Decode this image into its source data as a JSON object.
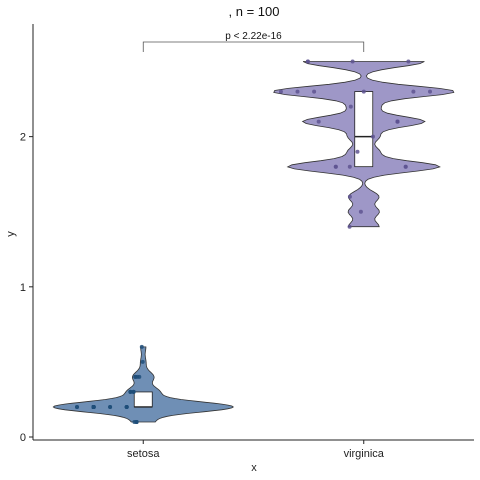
{
  "chart_data": {
    "type": "violin",
    "title": ", n = 100",
    "xlabel": "x",
    "ylabel": "y",
    "categories": [
      "setosa",
      "virginica"
    ],
    "yticks": [
      0,
      1,
      2
    ],
    "ylim": [
      -0.02,
      2.75
    ],
    "groups": [
      {
        "name": "setosa",
        "fill": "#6f8fb5",
        "point_color": "#1f4e79",
        "box": {
          "q1": 0.2,
          "median": 0.2,
          "q3": 0.3
        },
        "violin_range": [
          0.1,
          0.6
        ],
        "points": [
          [
            0.2,
            0.2
          ],
          [
            0.2,
            0.2
          ],
          [
            0.2,
            0.2
          ],
          [
            0.2,
            0.2
          ],
          [
            0.2,
            0.4
          ],
          [
            0.4,
            0.3
          ],
          [
            0.3,
            0.2
          ],
          [
            0.2,
            0.2
          ],
          [
            0.1,
            0.1
          ],
          [
            0.2,
            0.2
          ],
          [
            0.3,
            0.1
          ],
          [
            0.4,
            0.2
          ],
          [
            0.2,
            0.2
          ],
          [
            0.5,
            0.4
          ],
          [
            0.2,
            0.3
          ],
          [
            0.3,
            0.1
          ],
          [
            0.2,
            0.2
          ],
          [
            0.6,
            0.2
          ],
          [
            0.2,
            0.3
          ],
          [
            0.2,
            0.4
          ],
          [
            0.2,
            0.2
          ],
          [
            0.2,
            0.2
          ],
          [
            0.4,
            0.1
          ],
          [
            0.2,
            0.2
          ],
          [
            0.2,
            0.2
          ],
          [
            0.2,
            0.2
          ],
          [
            0.1,
            0.2
          ],
          [
            0.2,
            0.2
          ],
          [
            0.2,
            0.4
          ],
          [
            0.3,
            0.2
          ],
          [
            0.2,
            0.2
          ],
          [
            0.2,
            0.2
          ],
          [
            0.2,
            0.2
          ],
          [
            0.2,
            0.4
          ],
          [
            0.2,
            0.1
          ],
          [
            0.2,
            0.2
          ],
          [
            0.2,
            0.2
          ],
          [
            0.3,
            0.2
          ],
          [
            0.2,
            0.2
          ],
          [
            0.2,
            0.2
          ],
          [
            0.3,
            0.1
          ],
          [
            0.2,
            0.2
          ],
          [
            0.2,
            0.2
          ],
          [
            0.4,
            0.1
          ],
          [
            0.2,
            0.2
          ],
          [
            0.2,
            0.1
          ],
          [
            0.1,
            0.2
          ],
          [
            0.2,
            0.2
          ],
          [
            0.1,
            0.2
          ],
          [
            0.2,
            0.2
          ]
        ]
      },
      {
        "name": "virginica",
        "fill": "#9e97c7",
        "point_color": "#5e5390",
        "box": {
          "q1": 1.8,
          "median": 2.0,
          "q3": 2.3
        },
        "violin_range": [
          1.4,
          2.5
        ],
        "points": [
          [
            2.5,
            1.9
          ],
          [
            2.1,
            1.8
          ],
          [
            2.2,
            2.1
          ],
          [
            1.8,
            1.8
          ],
          [
            2.5,
            2.0
          ],
          [
            2.3,
            2.0
          ],
          [
            1.8,
            1.8
          ],
          [
            2.3,
            1.9
          ],
          [
            2.5,
            2.0
          ],
          [
            2.3,
            2.1
          ],
          [
            2.0,
            1.8
          ],
          [
            2.1,
            1.8
          ],
          [
            2.3,
            2.2
          ],
          [
            1.8,
            2.4
          ],
          [
            1.8,
            2.3
          ],
          [
            2.1,
            1.8
          ],
          [
            1.4,
            2.0
          ],
          [
            2.3,
            1.5
          ],
          [
            1.9,
            2.3
          ],
          [
            2.5,
            2.4
          ],
          [
            1.6,
            2.0
          ],
          [
            1.5,
            2.4
          ],
          [
            2.1,
            2.1
          ],
          [
            1.8,
            2.3
          ],
          [
            2.3,
            1.8
          ]
        ]
      }
    ],
    "comparison": {
      "from": "setosa",
      "to": "virginica",
      "label": "p < 2.22e-16",
      "y": 2.63
    }
  }
}
